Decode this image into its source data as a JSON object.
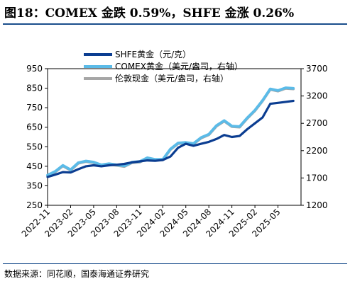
{
  "header": {
    "title": "图18：COMEX 金跌 0.59%，SHFE 金涨 0.26%"
  },
  "footer": {
    "source": "数据来源：同花顺，国泰海通证券研究"
  },
  "colors": {
    "shfe": "#0b3d91",
    "comex": "#5bbbe8",
    "spot": "#a6a6a6",
    "rule": "#1a4e8c"
  },
  "chart_data": {
    "type": "line",
    "title": "",
    "x_ticks": [
      "2022-11",
      "2023-02",
      "2023-05",
      "2023-08",
      "2023-11",
      "2024-02",
      "2024-05",
      "2024-08",
      "2024-11",
      "2025-02",
      "2025-05"
    ],
    "left_axis": {
      "ylim": [
        250,
        950
      ],
      "ticks": [
        250,
        350,
        450,
        550,
        650,
        750,
        850,
        950
      ]
    },
    "right_axis": {
      "ylim": [
        1200,
        3700
      ],
      "ticks": [
        1200,
        1700,
        2200,
        2700,
        3200,
        3700
      ]
    },
    "series": [
      {
        "name": "SHFE黄金（元/克）",
        "axis": "left",
        "color": "#0b3d91",
        "x": [
          "2022-11",
          "2022-12",
          "2023-01",
          "2023-02",
          "2023-03",
          "2023-04",
          "2023-05",
          "2023-06",
          "2023-07",
          "2023-08",
          "2023-09",
          "2023-10",
          "2023-11",
          "2023-12",
          "2024-01",
          "2024-02",
          "2024-03",
          "2024-04",
          "2024-05",
          "2024-06",
          "2024-07",
          "2024-08",
          "2024-09",
          "2024-10",
          "2024-11",
          "2024-12",
          "2025-01",
          "2025-02",
          "2025-03",
          "2025-04",
          "2025-05",
          "2025-06",
          "2025-07"
        ],
        "values": [
          395,
          407,
          420,
          418,
          435,
          450,
          455,
          450,
          455,
          458,
          462,
          470,
          475,
          480,
          478,
          482,
          500,
          545,
          565,
          555,
          565,
          575,
          590,
          610,
          600,
          605,
          640,
          670,
          700,
          770,
          775,
          780,
          785
        ]
      },
      {
        "name": "COMEX黄金（美元/盎司，右轴）",
        "axis": "right",
        "color": "#5bbbe8",
        "x": [
          "2022-11",
          "2022-12",
          "2023-01",
          "2023-02",
          "2023-03",
          "2023-04",
          "2023-05",
          "2023-06",
          "2023-07",
          "2023-08",
          "2023-09",
          "2023-10",
          "2023-11",
          "2023-12",
          "2024-01",
          "2024-02",
          "2024-03",
          "2024-04",
          "2024-05",
          "2024-06",
          "2024-07",
          "2024-08",
          "2024-09",
          "2024-10",
          "2024-11",
          "2024-12",
          "2025-01",
          "2025-02",
          "2025-03",
          "2025-04",
          "2025-05",
          "2025-06",
          "2025-07"
        ],
        "values": [
          1750,
          1820,
          1930,
          1850,
          1980,
          2010,
          1990,
          1940,
          1960,
          1940,
          1920,
          1990,
          2000,
          2070,
          2040,
          2040,
          2230,
          2340,
          2350,
          2330,
          2440,
          2500,
          2660,
          2750,
          2650,
          2640,
          2800,
          2940,
          3120,
          3330,
          3300,
          3350,
          3340
        ]
      },
      {
        "name": "伦敦现金（美元/盎司，右轴）",
        "axis": "right",
        "color": "#a6a6a6",
        "x": [
          "2022-11",
          "2022-12",
          "2023-01",
          "2023-02",
          "2023-03",
          "2023-04",
          "2023-05",
          "2023-06",
          "2023-07",
          "2023-08",
          "2023-09",
          "2023-10",
          "2023-11",
          "2023-12",
          "2024-01",
          "2024-02",
          "2024-03",
          "2024-04",
          "2024-05",
          "2024-06",
          "2024-07",
          "2024-08",
          "2024-09",
          "2024-10",
          "2024-11",
          "2024-12",
          "2025-01",
          "2025-02",
          "2025-03",
          "2025-04",
          "2025-05",
          "2025-06",
          "2025-07"
        ],
        "values": [
          1740,
          1810,
          1920,
          1840,
          1970,
          2000,
          1980,
          1930,
          1950,
          1930,
          1910,
          1980,
          1990,
          2060,
          2030,
          2030,
          2220,
          2330,
          2340,
          2320,
          2430,
          2490,
          2650,
          2740,
          2640,
          2630,
          2790,
          2930,
          3110,
          3320,
          3290,
          3340,
          3330
        ]
      }
    ],
    "legend": "top-left",
    "grid": false
  }
}
